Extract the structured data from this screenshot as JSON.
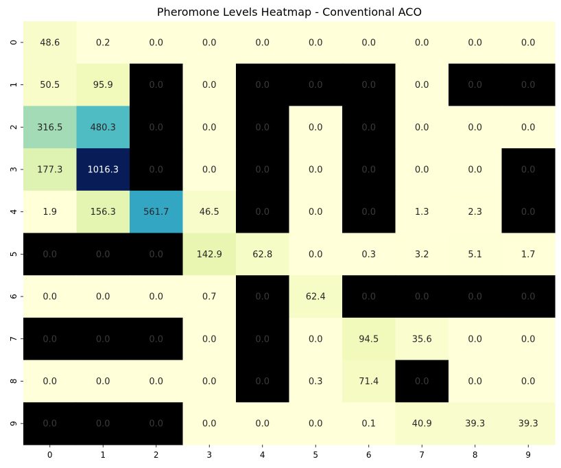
{
  "chart_data": {
    "type": "heatmap",
    "title": "Pheromone Levels Heatmap - Conventional ACO",
    "x_labels": [
      "0",
      "1",
      "2",
      "3",
      "4",
      "5",
      "6",
      "7",
      "8",
      "9"
    ],
    "y_labels": [
      "0",
      "1",
      "2",
      "3",
      "4",
      "5",
      "6",
      "7",
      "8",
      "9"
    ],
    "values": [
      [
        48.6,
        0.2,
        0.0,
        0.0,
        0.0,
        0.0,
        0.0,
        0.0,
        0.0,
        0.0
      ],
      [
        50.5,
        95.9,
        0.0,
        0.0,
        0.0,
        0.0,
        0.0,
        0.0,
        0.0,
        0.0
      ],
      [
        316.5,
        480.3,
        0.0,
        0.0,
        0.0,
        0.0,
        0.0,
        0.0,
        0.0,
        0.0
      ],
      [
        177.3,
        1016.3,
        0.0,
        0.0,
        0.0,
        0.0,
        0.0,
        0.0,
        0.0,
        0.0
      ],
      [
        1.9,
        156.3,
        561.7,
        46.5,
        0.0,
        0.0,
        0.0,
        1.3,
        2.3,
        0.0
      ],
      [
        0.0,
        0.0,
        0.0,
        142.9,
        62.8,
        0.0,
        0.3,
        3.2,
        5.1,
        1.7
      ],
      [
        0.0,
        0.0,
        0.0,
        0.7,
        0.0,
        62.4,
        0.0,
        0.0,
        0.0,
        0.0
      ],
      [
        0.0,
        0.0,
        0.0,
        0.0,
        0.0,
        0.0,
        94.5,
        35.6,
        0.0,
        0.0
      ],
      [
        0.0,
        0.0,
        0.0,
        0.0,
        0.0,
        0.3,
        71.4,
        0.0,
        0.0,
        0.0
      ],
      [
        0.0,
        0.0,
        0.0,
        0.0,
        0.0,
        0.0,
        0.1,
        40.9,
        39.3,
        39.3
      ]
    ],
    "obstacles": [
      [
        0,
        0,
        0,
        0,
        0,
        0,
        0,
        0,
        0,
        0
      ],
      [
        0,
        0,
        1,
        0,
        1,
        1,
        1,
        0,
        1,
        1
      ],
      [
        0,
        0,
        1,
        0,
        1,
        0,
        1,
        0,
        0,
        0
      ],
      [
        0,
        0,
        1,
        0,
        1,
        0,
        1,
        0,
        0,
        1
      ],
      [
        0,
        0,
        0,
        0,
        1,
        0,
        1,
        0,
        0,
        1
      ],
      [
        1,
        1,
        1,
        0,
        0,
        0,
        0,
        0,
        0,
        0
      ],
      [
        0,
        0,
        0,
        0,
        1,
        0,
        1,
        1,
        1,
        1
      ],
      [
        1,
        1,
        1,
        0,
        1,
        0,
        0,
        0,
        0,
        0
      ],
      [
        0,
        0,
        0,
        0,
        1,
        0,
        0,
        1,
        0,
        0
      ],
      [
        1,
        1,
        1,
        0,
        0,
        0,
        0,
        0,
        0,
        0
      ]
    ],
    "colormap": "YlGnBu",
    "obstacle_color": "#000000",
    "value_range": [
      0,
      1016.3
    ],
    "colorbar": false,
    "grid": false
  }
}
